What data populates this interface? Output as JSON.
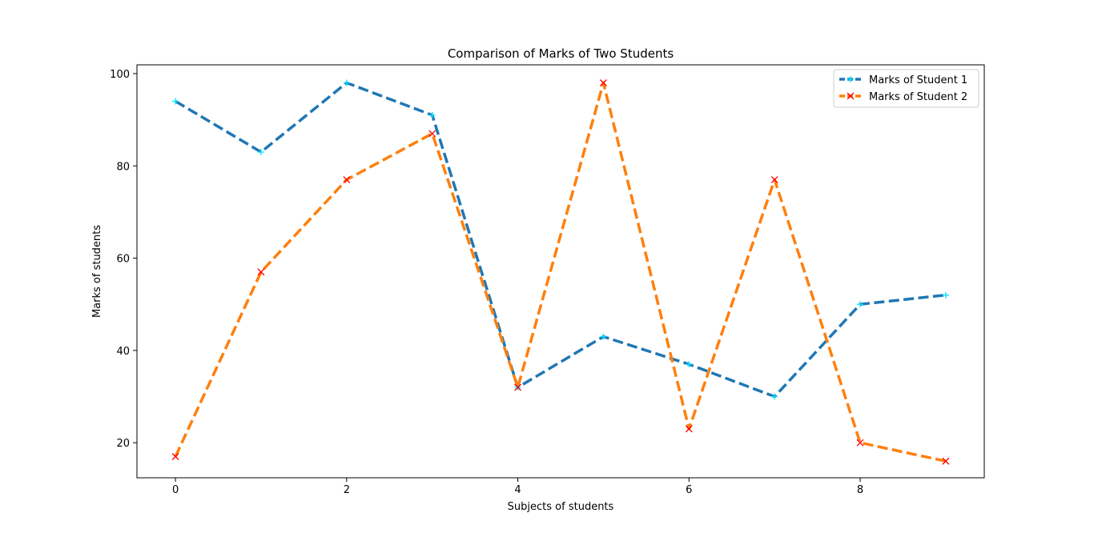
{
  "chart_data": {
    "type": "line",
    "title": "Comparison of Marks of Two Students",
    "xlabel": "Subjects of students",
    "ylabel": "Marks of students",
    "xlim": [
      -0.45,
      9.45
    ],
    "ylim": [
      12.4,
      101.9
    ],
    "xticks": [
      0,
      2,
      4,
      6,
      8
    ],
    "yticks": [
      20,
      40,
      60,
      80,
      100
    ],
    "x": [
      0,
      1,
      2,
      3,
      4,
      5,
      6,
      7,
      8,
      9
    ],
    "series": [
      {
        "name": "Marks of Student 1",
        "values": [
          94,
          83,
          98,
          91,
          32,
          43,
          37,
          30,
          50,
          52
        ],
        "color": "#1f77b4",
        "marker": "+",
        "marker_color": "#00e5ff",
        "linestyle": "dashed"
      },
      {
        "name": "Marks of Student 2",
        "values": [
          17,
          57,
          77,
          87,
          32,
          98,
          23,
          77,
          20,
          16
        ],
        "color": "#ff7f0e",
        "marker": "x",
        "marker_color": "#ff0000",
        "linestyle": "dashed"
      }
    ],
    "legend": "upper right",
    "grid": false
  }
}
